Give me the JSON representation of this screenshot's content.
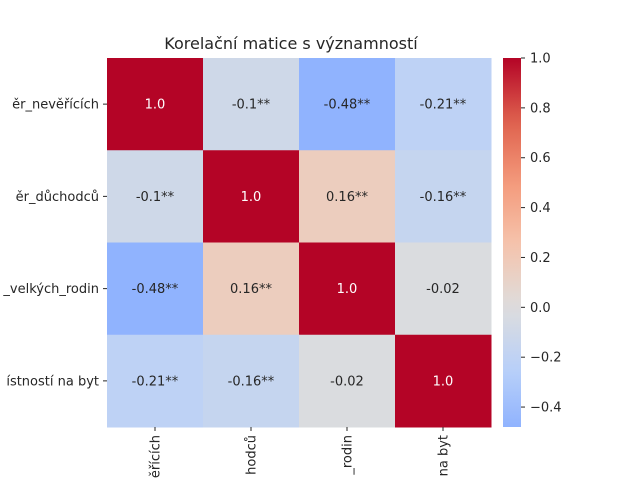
{
  "chart_data": {
    "type": "heatmap",
    "title": "Korelační matice s významností",
    "row_labels": [
      "ěr_nevěřících",
      "ěr_důchodců",
      "_velkých_rodin",
      "ístností na byt"
    ],
    "col_labels": [
      "ěřících",
      "hodců",
      "_rodin",
      "na byt"
    ],
    "values": [
      [
        1.0,
        -0.1,
        -0.48,
        -0.21
      ],
      [
        -0.1,
        1.0,
        0.16,
        -0.16
      ],
      [
        -0.48,
        0.16,
        1.0,
        -0.02
      ],
      [
        -0.21,
        -0.16,
        -0.02,
        1.0
      ]
    ],
    "annotations": [
      [
        "1.0",
        "-0.1**",
        "-0.48**",
        "-0.21**"
      ],
      [
        "-0.1**",
        "1.0",
        "0.16**",
        "-0.16**"
      ],
      [
        "-0.48**",
        "0.16**",
        "1.0",
        "-0.02"
      ],
      [
        "-0.21**",
        "-0.16**",
        "-0.02",
        "1.0"
      ]
    ],
    "colormap": "coolwarm",
    "center": 0,
    "colorbar": {
      "vmin": -0.48,
      "vmax": 1.0,
      "ticks": [
        -0.4,
        -0.2,
        0.0,
        0.2,
        0.4,
        0.6,
        0.8,
        1.0
      ],
      "tick_labels": [
        "−0.4",
        "−0.2",
        "0.0",
        "0.2",
        "0.4",
        "0.6",
        "0.8",
        "1.0"
      ]
    }
  }
}
